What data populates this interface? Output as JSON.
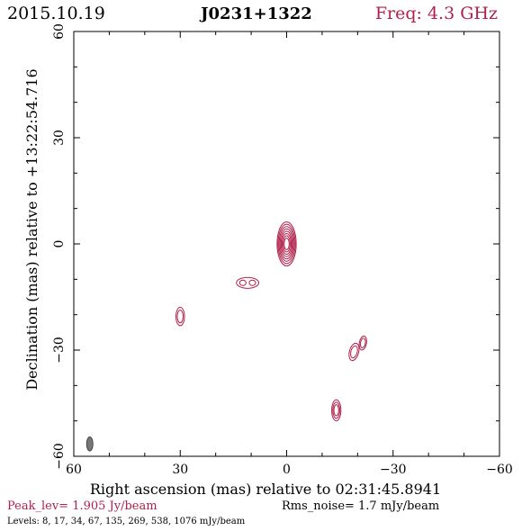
{
  "header": {
    "date": "2015.10.19",
    "source": "J0231+1322",
    "freq": "Freq: 4.3 GHz"
  },
  "footer": {
    "peak": "Peak_lev=  1.905 Jy/beam",
    "rms": "Rms_noise=  1.7 mJy/beam",
    "levels": "Levels:  8,  17,  34,  67, 135, 269, 538, 1076 mJy/beam"
  },
  "colors": {
    "contour": "#b0204a",
    "text_accent": "#b0204a",
    "axis": "#000000",
    "beam": "#777777"
  },
  "chart_data": {
    "type": "contour",
    "xlabel": "Right ascension (mas) relative to 02:31:45.8941",
    "ylabel": "Declination (mas) relative to +13:22:54.716",
    "xlim": [
      60,
      -60
    ],
    "ylim": [
      -60,
      60
    ],
    "xticks": [
      60,
      30,
      0,
      -30,
      -60
    ],
    "yticks": [
      -60,
      -30,
      0,
      30,
      60
    ],
    "xtick_labels": [
      "60",
      "30",
      "0",
      "−30",
      "−60"
    ],
    "ytick_labels": [
      "−60",
      "−30",
      "0",
      "30",
      "60"
    ],
    "levels_mJy": [
      8,
      17,
      34,
      67,
      135,
      269,
      538,
      1076
    ],
    "components": [
      {
        "x": 0,
        "y": 0,
        "rx": 2.7,
        "ry": 6.2,
        "angle": 0,
        "levels": 8
      },
      {
        "x": 11,
        "y": -11,
        "rx": 1.5,
        "ry": 1.4,
        "angle": 0,
        "levels": 2,
        "double": true
      },
      {
        "x": 30,
        "y": -20.5,
        "rx": 1.2,
        "ry": 2.6,
        "angle": 0,
        "levels": 2
      },
      {
        "x": -19,
        "y": -30.5,
        "rx": 1.3,
        "ry": 2.5,
        "angle": 15,
        "levels": 2
      },
      {
        "x": -21.5,
        "y": -28,
        "rx": 1.0,
        "ry": 2.0,
        "angle": 10,
        "levels": 2
      },
      {
        "x": -14,
        "y": -47,
        "rx": 1.3,
        "ry": 3.0,
        "angle": 0,
        "levels": 3
      }
    ],
    "beam": {
      "x": 55.5,
      "y": -56.5,
      "rx": 0.9,
      "ry": 2.0,
      "angle": 0
    }
  }
}
